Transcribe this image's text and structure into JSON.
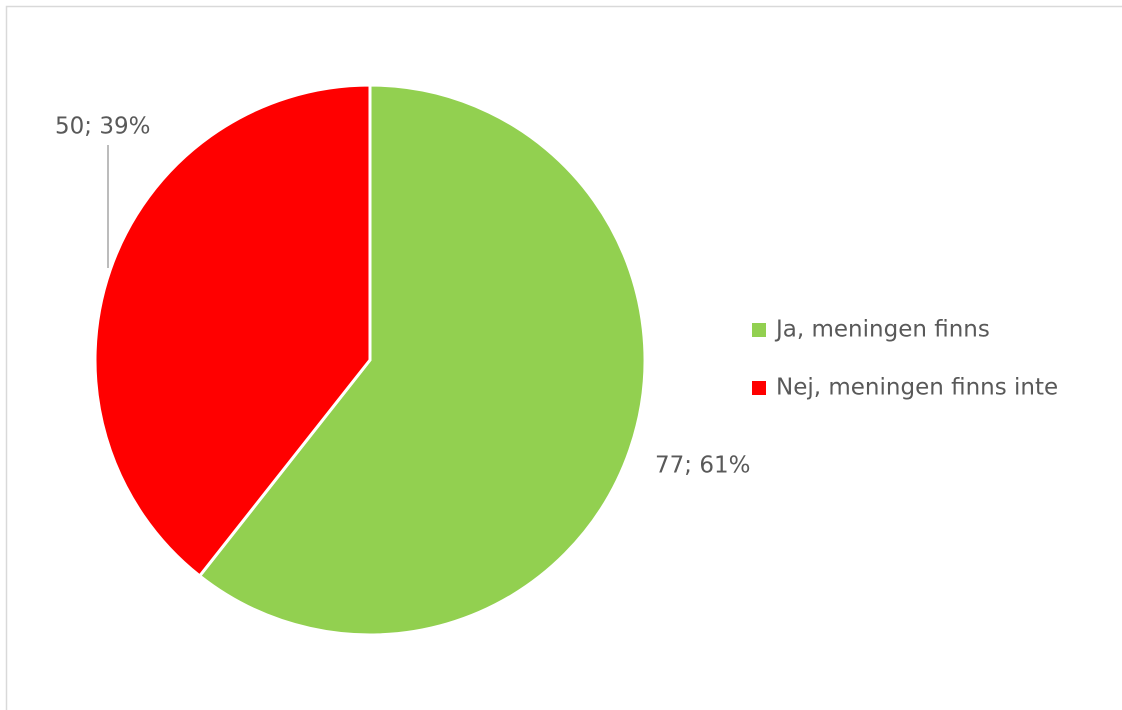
{
  "chart_data": {
    "type": "pie",
    "categories": [
      "Ja, meningen finns",
      "Nej, meningen finns inte"
    ],
    "values": [
      77,
      50
    ],
    "value_labels": [
      "77; 61%",
      "50; 39%"
    ],
    "colors": [
      "#92d050",
      "#ff0000"
    ],
    "legend": "right"
  }
}
